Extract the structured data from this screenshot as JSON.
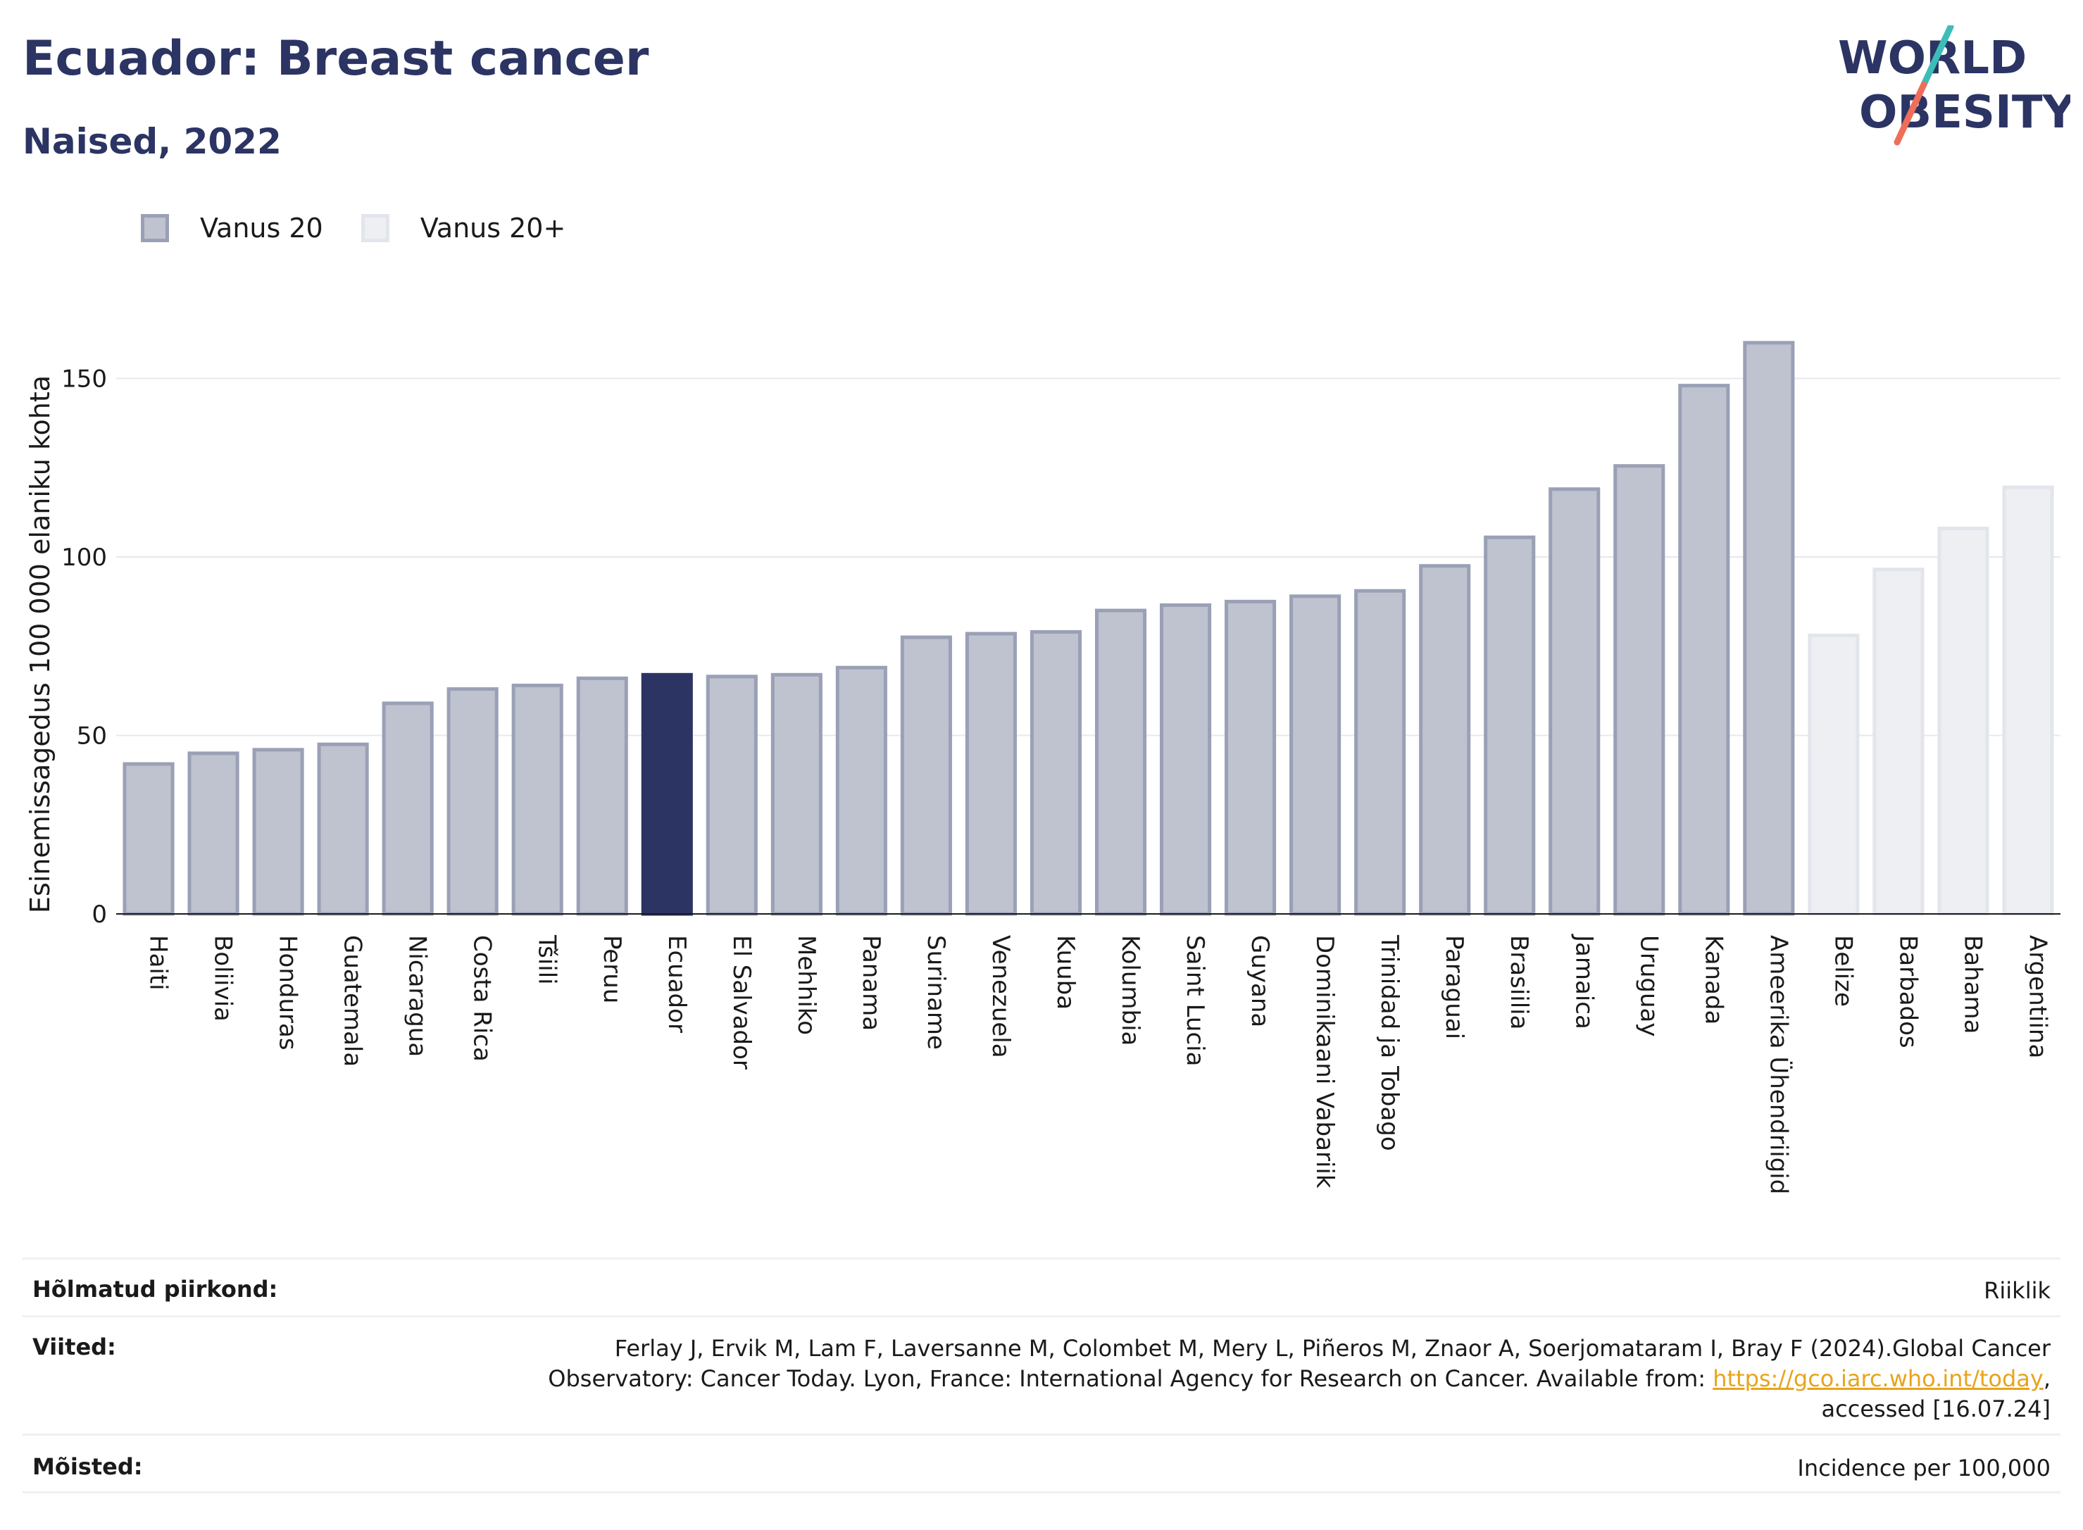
{
  "header": {
    "title": "Ecuador: Breast cancer",
    "subtitle": "Naised, 2022"
  },
  "logo": {
    "line1": "WORLD",
    "line2": "OBESITY",
    "colors": {
      "text": "#2b3463",
      "slash_top": "#3dbdb7",
      "slash_bottom": "#ee6e5a"
    }
  },
  "legend": {
    "items": [
      {
        "label": "Vanus 20",
        "fill": "#bfc2cf",
        "stroke": "#9aa0b5"
      },
      {
        "label": "Vanus 20+",
        "fill": "#eeeff3",
        "stroke": "#e3e5ec"
      }
    ]
  },
  "chart_data": {
    "type": "bar",
    "ylabel": "Esinemissagedus 100 000 elaniku kohta",
    "ylim": [
      0,
      170
    ],
    "yticks": [
      0,
      50,
      100,
      150
    ],
    "grid": true,
    "legend_position": "top-left",
    "highlight": "Ecuador",
    "colors": {
      "vanus20_fill": "#bfc2cf",
      "vanus20_stroke": "#9aa0b5",
      "vanus20plus_fill": "#eeeff3",
      "vanus20plus_stroke": "#e3e5ec",
      "highlight_fill": "#2b3463"
    },
    "bars": [
      {
        "category": "Haiti",
        "value": 42,
        "group": "Vanus 20"
      },
      {
        "category": "Boliivia",
        "value": 45,
        "group": "Vanus 20"
      },
      {
        "category": "Honduras",
        "value": 46,
        "group": "Vanus 20"
      },
      {
        "category": "Guatemala",
        "value": 47.5,
        "group": "Vanus 20"
      },
      {
        "category": "Nicaragua",
        "value": 59,
        "group": "Vanus 20"
      },
      {
        "category": "Costa Rica",
        "value": 63,
        "group": "Vanus 20"
      },
      {
        "category": "Tšiili",
        "value": 64,
        "group": "Vanus 20"
      },
      {
        "category": "Peruu",
        "value": 66,
        "group": "Vanus 20"
      },
      {
        "category": "Ecuador",
        "value": 67,
        "group": "Vanus 20"
      },
      {
        "category": "El Salvador",
        "value": 66.5,
        "group": "Vanus 20"
      },
      {
        "category": "Mehhiko",
        "value": 67,
        "group": "Vanus 20"
      },
      {
        "category": "Panama",
        "value": 69,
        "group": "Vanus 20"
      },
      {
        "category": "Suriname",
        "value": 77.5,
        "group": "Vanus 20"
      },
      {
        "category": "Venezuela",
        "value": 78.5,
        "group": "Vanus 20"
      },
      {
        "category": "Kuuba",
        "value": 79,
        "group": "Vanus 20"
      },
      {
        "category": "Kolumbia",
        "value": 85,
        "group": "Vanus 20"
      },
      {
        "category": "Saint Lucia",
        "value": 86.5,
        "group": "Vanus 20"
      },
      {
        "category": "Guyana",
        "value": 87.5,
        "group": "Vanus 20"
      },
      {
        "category": "Dominikaani Vabariik",
        "value": 89,
        "group": "Vanus 20"
      },
      {
        "category": "Trinidad ja Tobago",
        "value": 90.5,
        "group": "Vanus 20"
      },
      {
        "category": "Paraguai",
        "value": 97.5,
        "group": "Vanus 20"
      },
      {
        "category": "Brasiilia",
        "value": 105.5,
        "group": "Vanus 20"
      },
      {
        "category": "Jamaica",
        "value": 119,
        "group": "Vanus 20"
      },
      {
        "category": "Uruguay",
        "value": 125.5,
        "group": "Vanus 20"
      },
      {
        "category": "Kanada",
        "value": 148,
        "group": "Vanus 20"
      },
      {
        "category": "Ameerika Ühendriigid",
        "value": 160,
        "group": "Vanus 20"
      },
      {
        "category": "Belize",
        "value": 78,
        "group": "Vanus 20+"
      },
      {
        "category": "Barbados",
        "value": 96.5,
        "group": "Vanus 20+"
      },
      {
        "category": "Bahama",
        "value": 108,
        "group": "Vanus 20+"
      },
      {
        "category": "Argentiina",
        "value": 119.5,
        "group": "Vanus 20+"
      }
    ]
  },
  "info": {
    "region_label": "Hõlmatud piirkond:",
    "region_value": "Riiklik",
    "refs_label": "Viited:",
    "refs_line1": "Ferlay J, Ervik M, Lam F, Laversanne M, Colombet M, Mery L, Piñeros M, Znaor A, Soerjomataram I, Bray F (2024).Global Cancer",
    "refs_line2_pre": "Observatory: Cancer Today. Lyon, France: International Agency for Research on Cancer. Available from: ",
    "refs_link": "https://gco.iarc.who.int/today",
    "refs_line2_post": ",",
    "refs_line3": "accessed [16.07.24]",
    "defs_label": "Mõisted:",
    "defs_value": "Incidence per 100,000"
  }
}
